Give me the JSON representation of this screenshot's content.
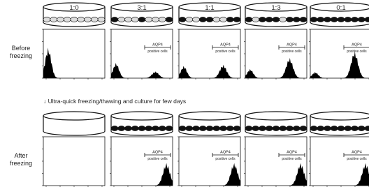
{
  "columns": [
    "1:0",
    "3:1",
    "1:1",
    "1:3",
    "0:1"
  ],
  "rows": [
    {
      "label": [
        "Before",
        "freezing"
      ]
    },
    {
      "label": [
        "After",
        "freezing"
      ]
    }
  ],
  "step": "↓ Ultra-quick freezing/thawing and culture for few days",
  "gate_label": [
    "AQP4",
    "positive cells"
  ]
}
